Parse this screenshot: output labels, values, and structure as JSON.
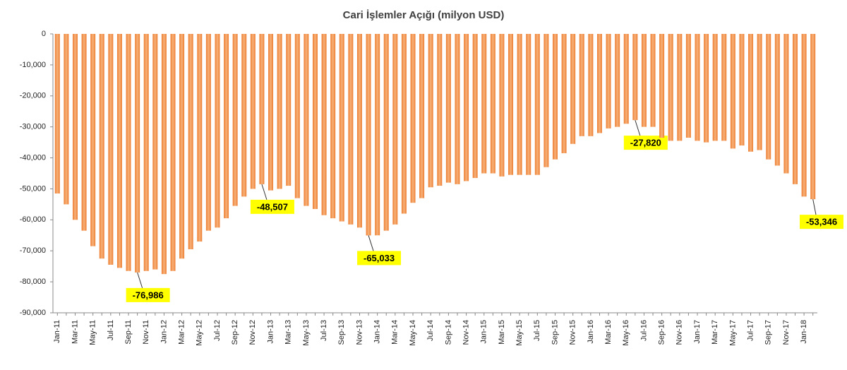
{
  "chart_data": {
    "type": "bar",
    "title": "Cari İşlemler Açığı (milyon USD)",
    "categories": [
      "Jan-11",
      null,
      "Mar-11",
      null,
      "May-11",
      null,
      "Jul-11",
      null,
      "Sep-11",
      null,
      "Nov-11",
      null,
      "Jan-12",
      null,
      "Mar-12",
      null,
      "May-12",
      null,
      "Jul-12",
      null,
      "Sep-12",
      null,
      "Nov-12",
      null,
      "Jan-13",
      null,
      "Mar-13",
      null,
      "May-13",
      null,
      "Jul-13",
      null,
      "Sep-13",
      null,
      "Nov-13",
      null,
      "Jan-14",
      null,
      "Mar-14",
      null,
      "May-14",
      null,
      "Jul-14",
      null,
      "Sep-14",
      null,
      "Nov-14",
      null,
      "Jan-15",
      null,
      "Mar-15",
      null,
      "May-15",
      null,
      "Jul-15",
      null,
      "Sep-15",
      null,
      "Nov-15",
      null,
      "Jan-16",
      null,
      "Mar-16",
      null,
      "May-16",
      null,
      "Jul-16",
      null,
      "Sep-16",
      null,
      "Nov-16",
      null,
      "Jan-17",
      null,
      "Mar-17",
      null,
      "May-17",
      null,
      "Jul-17",
      null,
      "Sep-17",
      null,
      "Nov-17",
      null,
      "Jan-18",
      null
    ],
    "values": [
      -51500,
      -55000,
      -60000,
      -63500,
      -68500,
      -72500,
      -74500,
      -75500,
      -76500,
      -76986,
      -76500,
      -76000,
      -77500,
      -76500,
      -72500,
      -69500,
      -67000,
      -63500,
      -62500,
      -59500,
      -55500,
      -52500,
      -50000,
      -48507,
      -50500,
      -50000,
      -49000,
      -53000,
      -55500,
      -56500,
      -58500,
      -59500,
      -60500,
      -61500,
      -62500,
      -65033,
      -65000,
      -63500,
      -61500,
      -58000,
      -54500,
      -53000,
      -49500,
      -49000,
      -48000,
      -48500,
      -47500,
      -46500,
      -45000,
      -45000,
      -46000,
      -45500,
      -45500,
      -45500,
      -45500,
      -43000,
      -40500,
      -38500,
      -35500,
      -33000,
      -33000,
      -32000,
      -30500,
      -30000,
      -29000,
      -27820,
      -30000,
      -30000,
      -33500,
      -34500,
      -34500,
      -33500,
      -34500,
      -35000,
      -34500,
      -34500,
      -37000,
      -36000,
      -38000,
      -37500,
      -40500,
      -42500,
      -45000,
      -48500,
      -52500,
      -53346
    ],
    "value_labels": [
      null,
      null,
      null,
      null,
      null,
      null,
      null,
      null,
      null,
      "-76,986",
      null,
      null,
      null,
      null,
      null,
      null,
      null,
      null,
      null,
      null,
      null,
      null,
      null,
      "-48,507",
      null,
      null,
      null,
      null,
      null,
      null,
      null,
      null,
      null,
      null,
      null,
      "-65,033",
      null,
      null,
      null,
      null,
      null,
      null,
      null,
      null,
      null,
      null,
      null,
      null,
      null,
      null,
      null,
      null,
      null,
      null,
      null,
      null,
      null,
      null,
      null,
      null,
      null,
      null,
      null,
      null,
      null,
      "-27,820",
      null,
      null,
      null,
      null,
      null,
      null,
      null,
      null,
      null,
      null,
      null,
      null,
      null,
      null,
      null,
      null,
      null,
      null,
      null,
      "-53,346"
    ],
    "color": "#ed7d31",
    "ylim": [
      -90000,
      0
    ],
    "yticks": [
      0,
      {
        "value": -10000,
        "label": "-10,000"
      },
      {
        "value": -20000,
        "label": "-20,000"
      },
      {
        "value": -30000,
        "label": "-30,000"
      },
      {
        "value": -40000,
        "label": "-40,000"
      },
      {
        "value": -50000,
        "label": "-50,000"
      },
      {
        "value": -60000,
        "label": "-60,000"
      },
      {
        "value": -70000,
        "label": "-70,000"
      },
      {
        "value": -80000,
        "label": "-80,000"
      },
      {
        "value": -90000,
        "label": "-90,000"
      }
    ]
  }
}
